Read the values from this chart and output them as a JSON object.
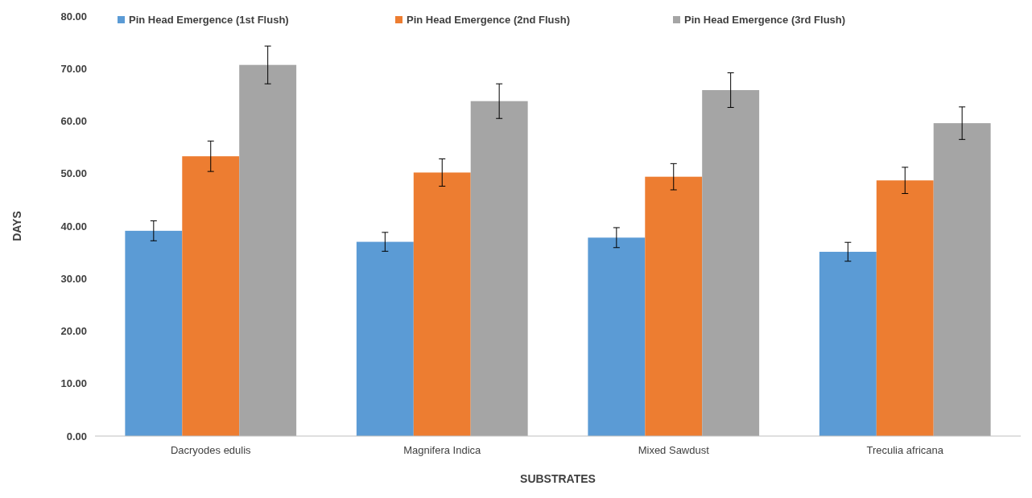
{
  "chart_data": {
    "type": "bar",
    "xlabel": "SUBSTRATES",
    "ylabel": "DAYS",
    "categories": [
      "Dacryodes edulis",
      "Magnifera Indica",
      "Mixed Sawdust",
      "Treculia africana"
    ],
    "series": [
      {
        "name": "Pin Head Emergence (1st Flush)",
        "color": "#5b9bd5",
        "values": [
          39.1,
          37.0,
          37.8,
          35.1
        ],
        "errors": [
          1.9,
          1.8,
          1.9,
          1.8
        ]
      },
      {
        "name": "Pin Head Emergence (2nd Flush)",
        "color": "#ed7d31",
        "values": [
          53.3,
          50.2,
          49.4,
          48.7
        ],
        "errors": [
          2.9,
          2.6,
          2.5,
          2.5
        ]
      },
      {
        "name": "Pin Head Emergence (3rd Flush)",
        "color": "#a5a5a5",
        "values": [
          70.7,
          63.8,
          65.9,
          59.6
        ],
        "errors": [
          3.6,
          3.3,
          3.3,
          3.1
        ]
      }
    ],
    "ylim": [
      0,
      80
    ],
    "yticks": [
      {
        "value": 0,
        "label": "0.00"
      },
      {
        "value": 10,
        "label": "10.00"
      },
      {
        "value": 20,
        "label": "20.00"
      },
      {
        "value": 30,
        "label": "30.00"
      },
      {
        "value": 40,
        "label": "40.00"
      },
      {
        "value": 50,
        "label": "50.00"
      },
      {
        "value": 60,
        "label": "60.00"
      },
      {
        "value": 70,
        "label": "70.00"
      },
      {
        "value": 80,
        "label": "80.00"
      }
    ],
    "grid": false,
    "legend": "top"
  }
}
